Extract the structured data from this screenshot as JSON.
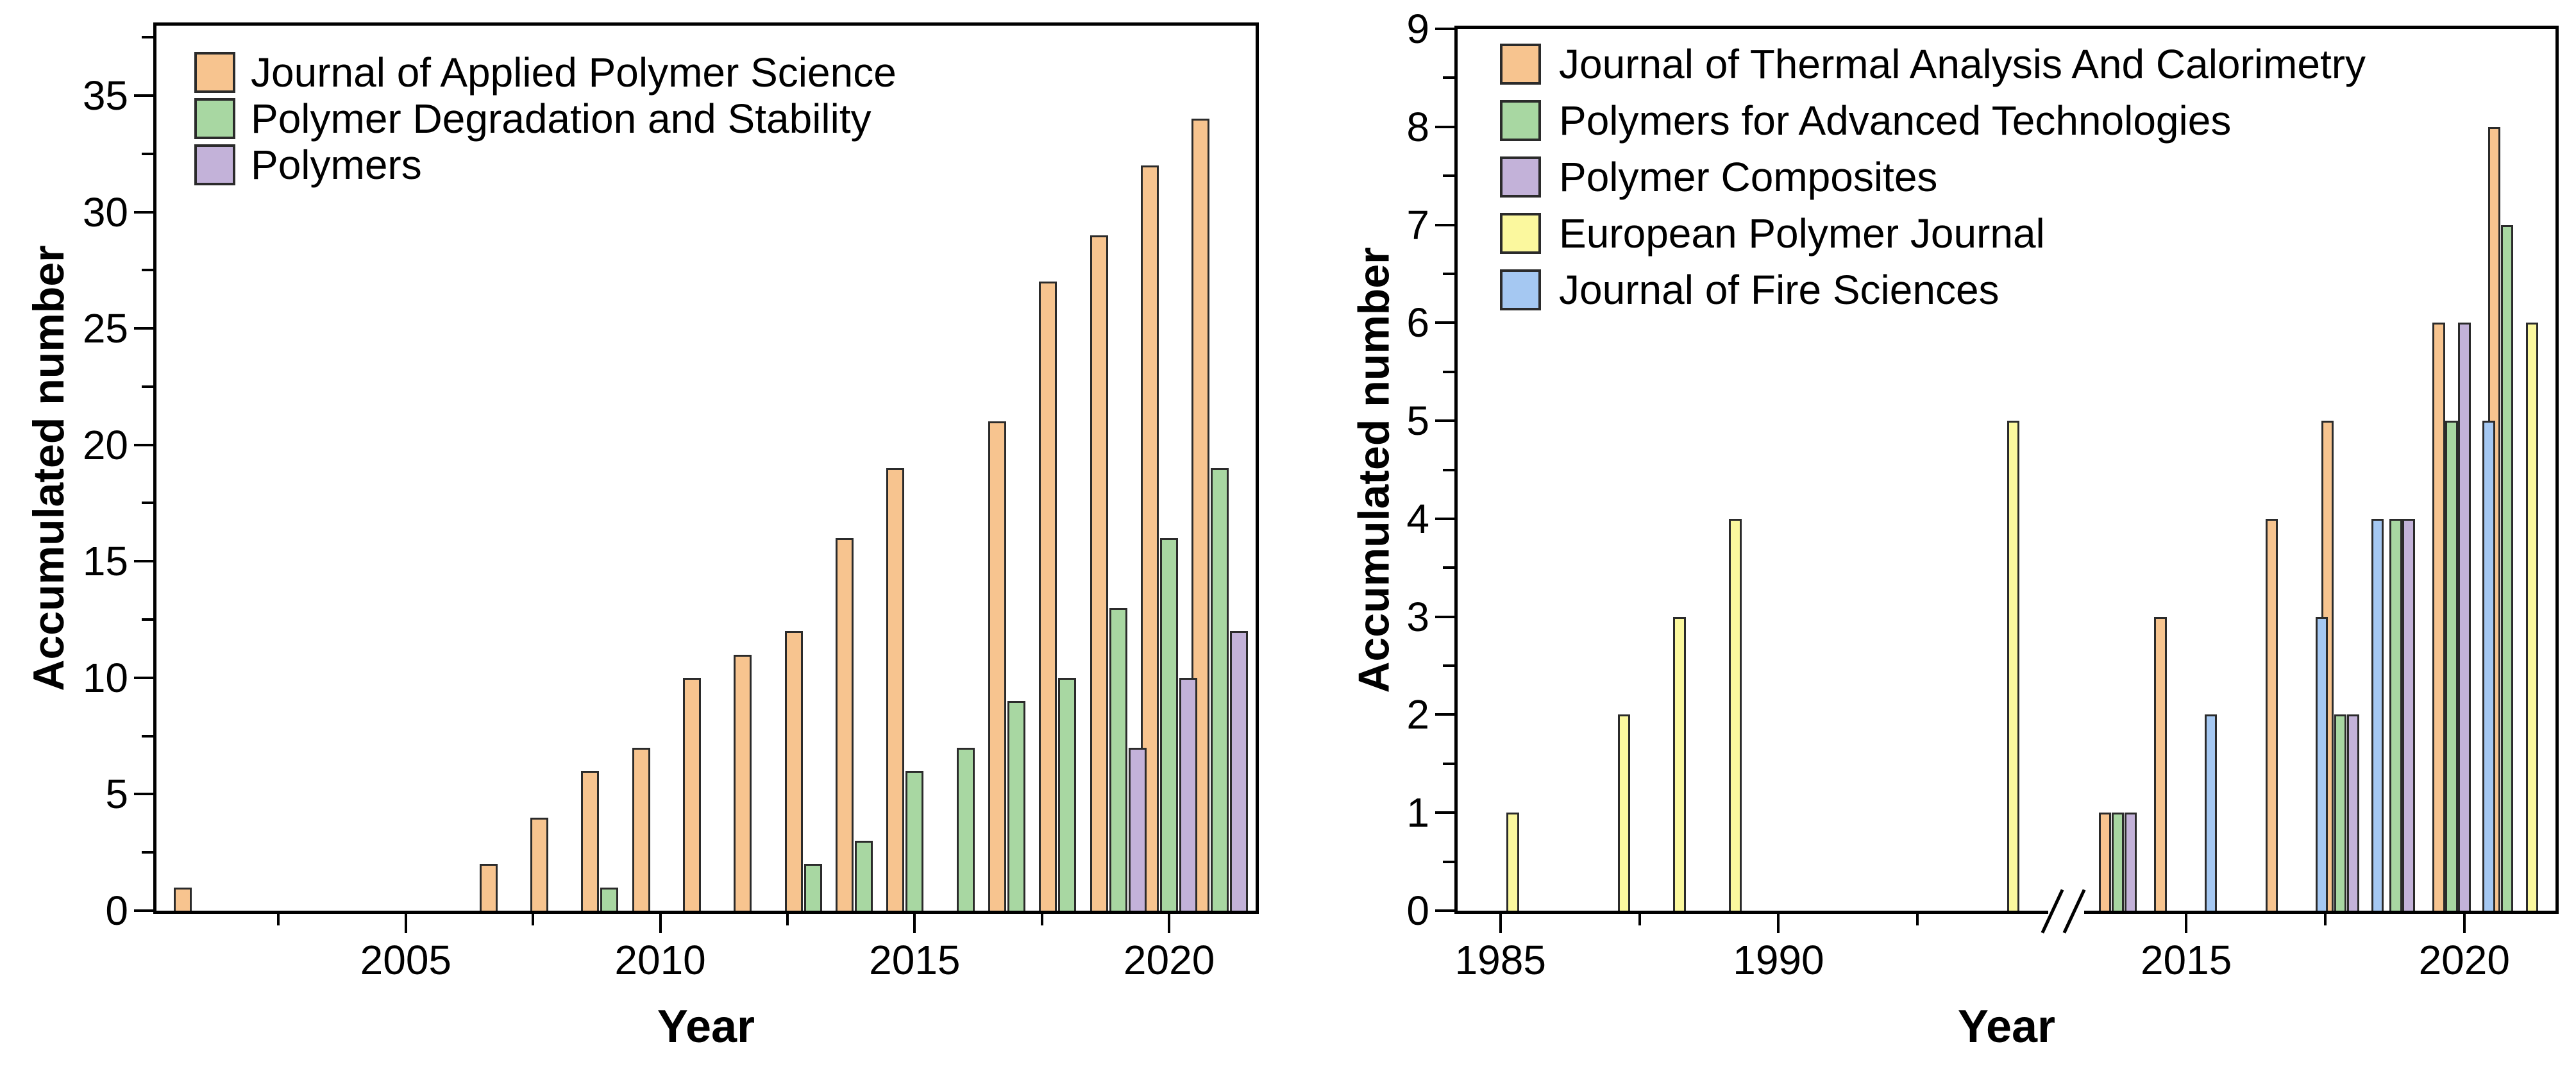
{
  "figure": {
    "background": "#ffffff",
    "axis_color": "#000000",
    "bar_border_color": "#2b2b2b"
  },
  "chart_data": [
    {
      "type": "bar",
      "title": "",
      "xlabel": "Year",
      "ylabel": "Accumulated number",
      "ylim": [
        0,
        38
      ],
      "yticks": [
        0,
        5,
        10,
        15,
        20,
        25,
        30,
        35
      ],
      "y_minor_step": 2.5,
      "grid": false,
      "legend_position": "top-left-inside",
      "segments": [
        {
          "xlim": [
            2000.1,
            2021.7
          ],
          "xticks": [
            2005,
            2010,
            2015,
            2020
          ],
          "xminor": [
            2002.5,
            2007.5,
            2012.5,
            2017.5
          ]
        }
      ],
      "bar_width_years": 0.353,
      "series": [
        {
          "name": "Journal of Applied Polymer Science",
          "color": "#F7C48F",
          "offset_years": -0.378,
          "points": [
            [
              2001,
              1
            ],
            [
              2007,
              2
            ],
            [
              2008,
              4
            ],
            [
              2009,
              6
            ],
            [
              2010,
              7
            ],
            [
              2011,
              10
            ],
            [
              2012,
              11
            ],
            [
              2013,
              12
            ],
            [
              2014,
              16
            ],
            [
              2015,
              19
            ],
            [
              2017,
              21
            ],
            [
              2018,
              27
            ],
            [
              2019,
              29
            ],
            [
              2020,
              32
            ],
            [
              2021,
              34
            ]
          ]
        },
        {
          "name": "Polymer Degradation and Stability",
          "color": "#A8D7A2",
          "offset_years": 0,
          "points": [
            [
              2009,
              1
            ],
            [
              2013,
              2
            ],
            [
              2014,
              3
            ],
            [
              2015,
              6
            ],
            [
              2016,
              7
            ],
            [
              2017,
              9
            ],
            [
              2018,
              10
            ],
            [
              2019,
              13
            ],
            [
              2020,
              16
            ],
            [
              2021,
              19
            ]
          ]
        },
        {
          "name": "Polymers",
          "color": "#C3B2D9",
          "offset_years": 0.378,
          "points": [
            [
              2019,
              7
            ],
            [
              2020,
              10
            ],
            [
              2021,
              12
            ]
          ]
        }
      ]
    },
    {
      "type": "bar",
      "title": "",
      "xlabel": "Year",
      "ylabel": "Accumulated number",
      "ylim": [
        0,
        9
      ],
      "yticks": [
        0,
        1,
        2,
        3,
        4,
        5,
        6,
        7,
        8,
        9
      ],
      "y_minor_step": 0.5,
      "grid": false,
      "legend_position": "top-left-inside",
      "axis_break": true,
      "segments": [
        {
          "xlim": [
            1984.23,
            1995.17
          ],
          "xticks": [
            1985,
            1990
          ],
          "xminor": [
            1987.5,
            1992.5
          ]
        },
        {
          "xlim": [
            2012.84,
            2021.64
          ],
          "xticks": [
            2015,
            2020
          ],
          "xminor": [
            2017.5
          ]
        }
      ],
      "bar_width_years": 0.225,
      "series": [
        {
          "name": "Journal of Thermal Analysis And Calorimetry",
          "color": "#F7C48F",
          "offset_years": -0.46,
          "points": [
            [
              2014,
              1
            ],
            [
              2015,
              3
            ],
            [
              2017,
              4
            ],
            [
              2018,
              5
            ],
            [
              2020,
              6
            ],
            [
              2021,
              8
            ]
          ]
        },
        {
          "name": "Polymers for Advanced Technologies",
          "color": "#A8D7A2",
          "offset_years": -0.23,
          "points": [
            [
              2014,
              1
            ],
            [
              2018,
              2
            ],
            [
              2019,
              4
            ],
            [
              2020,
              5
            ],
            [
              2021,
              7
            ]
          ]
        },
        {
          "name": "Polymer Composites",
          "color": "#C3B2D9",
          "offset_years": 0,
          "points": [
            [
              2014,
              1
            ],
            [
              2018,
              2
            ],
            [
              2019,
              4
            ],
            [
              2020,
              6
            ]
          ]
        },
        {
          "name": "European Polymer Journal",
          "color": "#FBF89E",
          "offset_years": 0.22,
          "points": [
            [
              1985,
              1
            ],
            [
              1987,
              2
            ],
            [
              1988,
              3
            ],
            [
              1989,
              4
            ],
            [
              1994,
              5
            ],
            [
              2021,
              6
            ]
          ]
        },
        {
          "name": "Journal of Fire Sciences",
          "color": "#A5C8F2",
          "offset_years": 0.44,
          "points": [
            [
              2015,
              2
            ],
            [
              2017,
              3
            ],
            [
              2018,
              4
            ],
            [
              2020,
              5
            ]
          ]
        }
      ]
    }
  ]
}
